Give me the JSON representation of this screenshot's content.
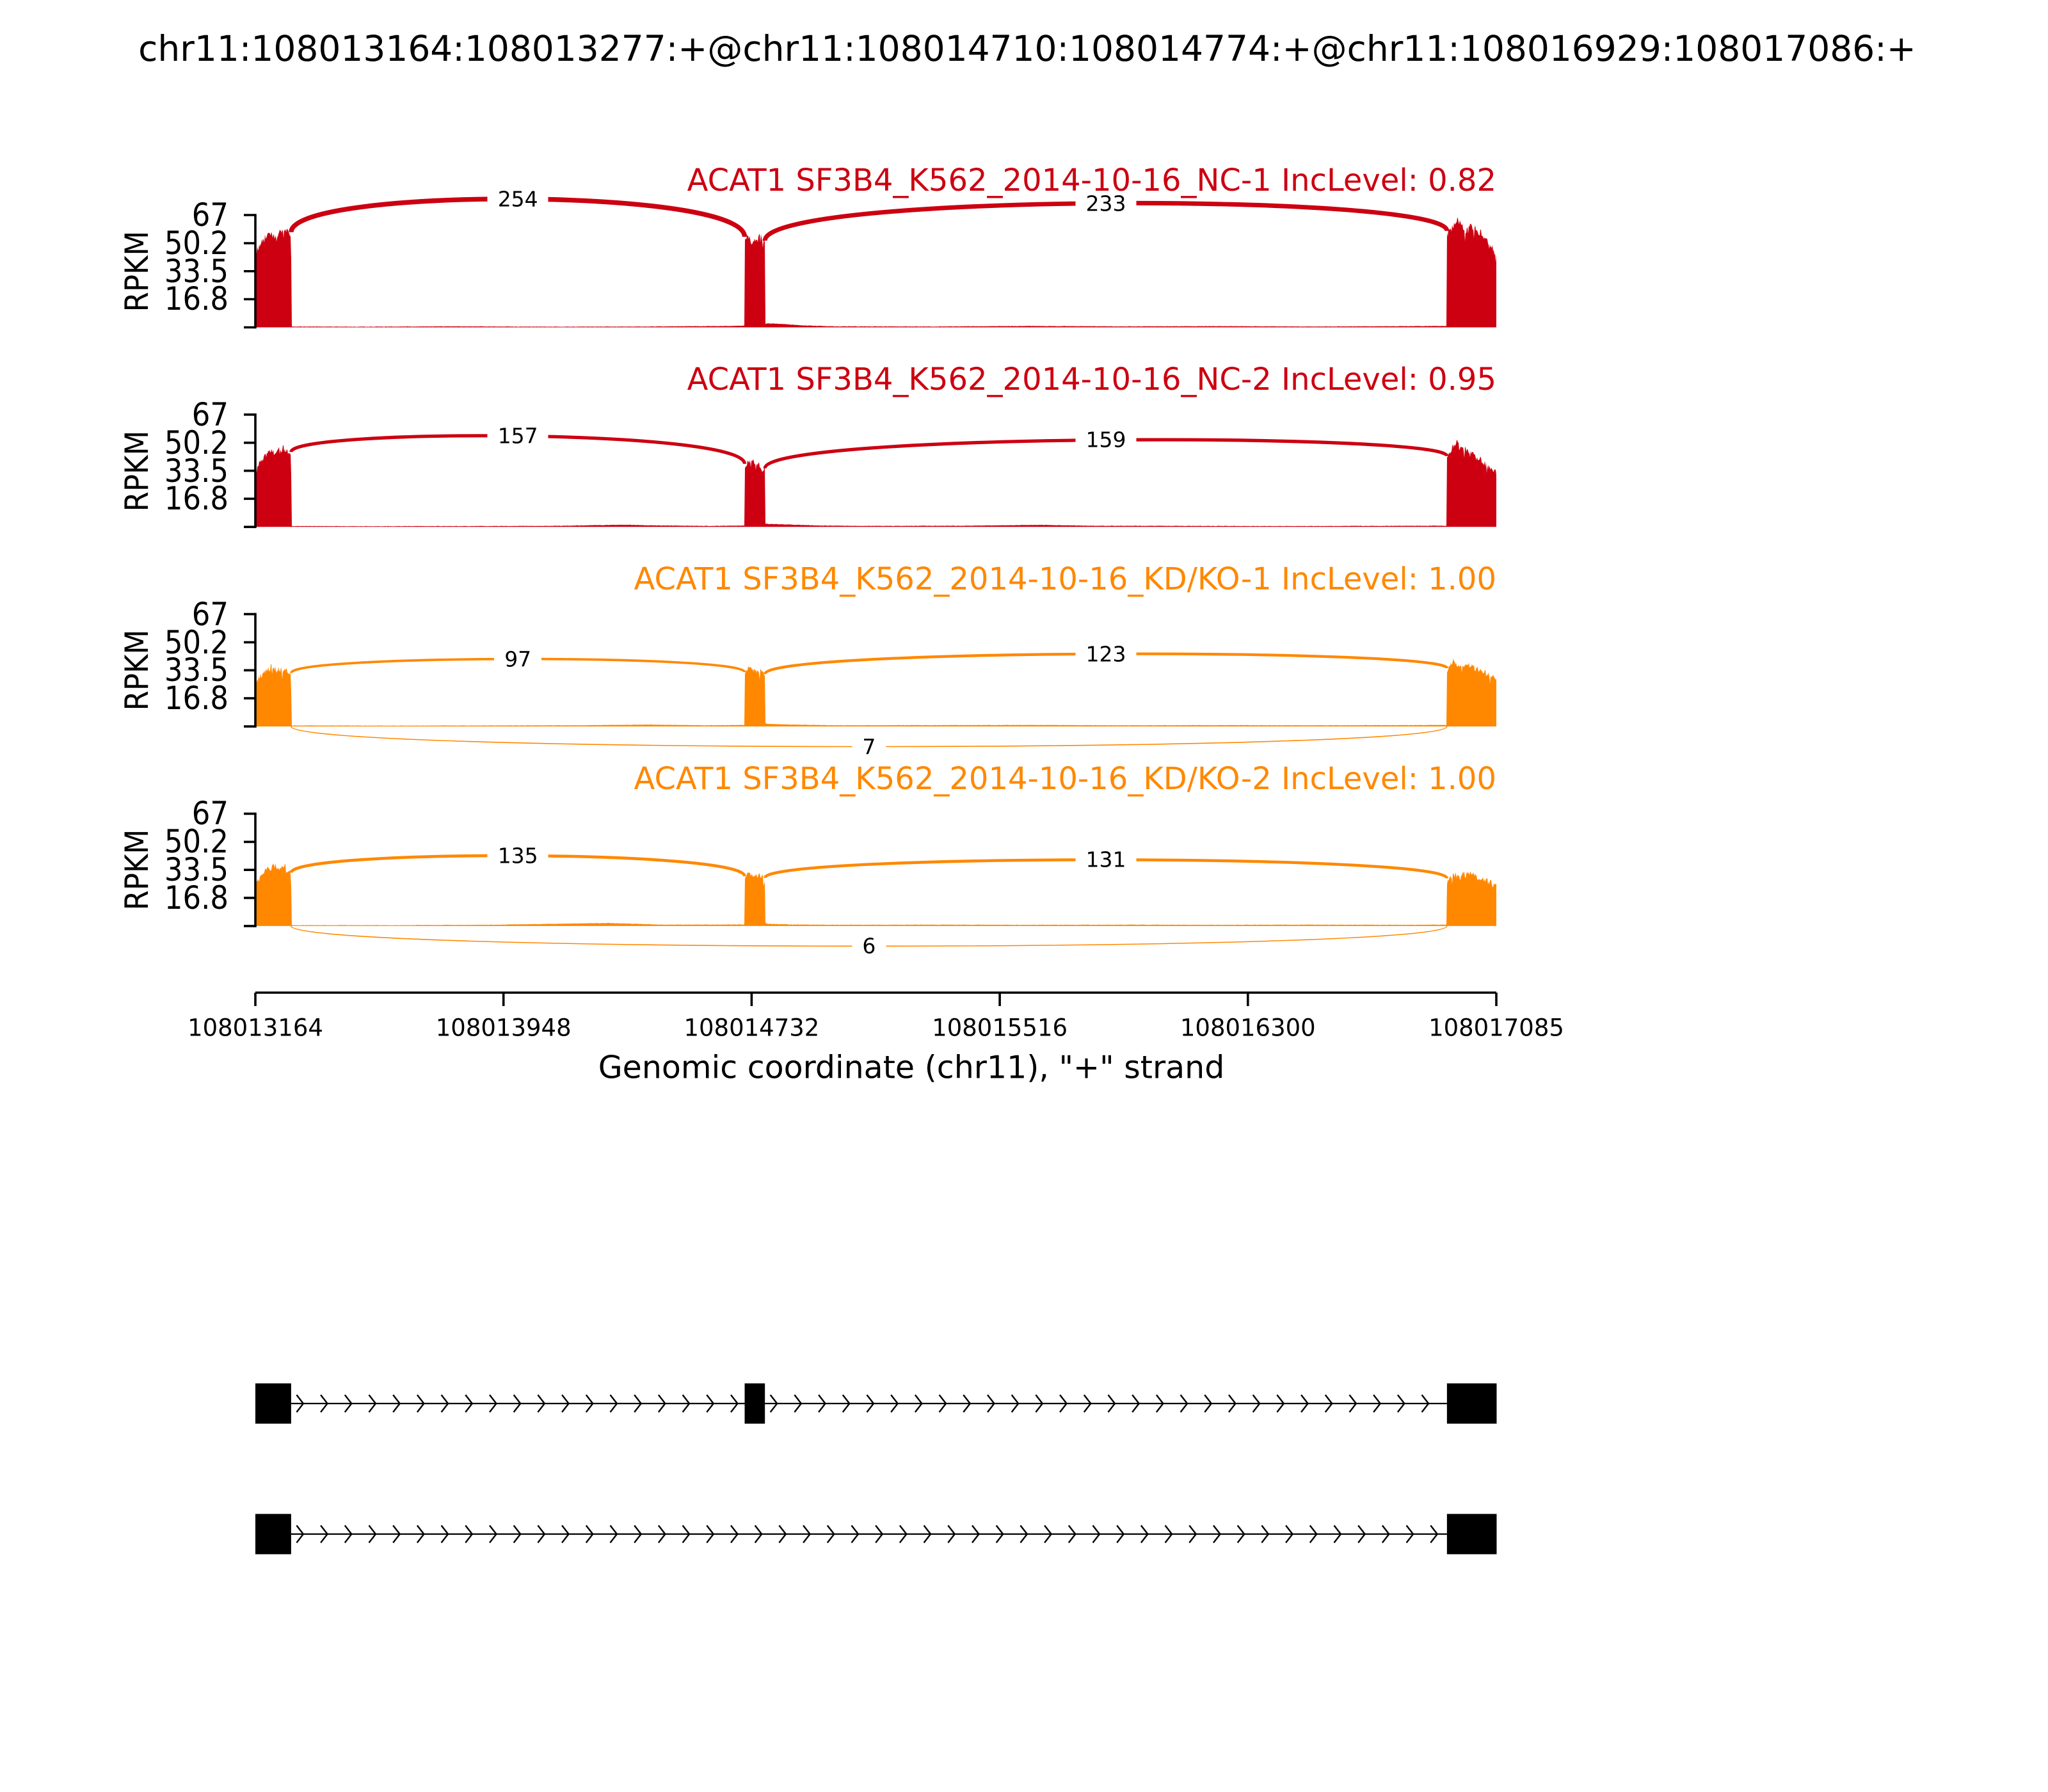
{
  "figure": {
    "background": "#ffffff"
  },
  "chart_data": {
    "type": "sashimi",
    "title": "chr11:108013164:108013277:+@chr11:108014710:108014774:+@chr11:108016929:108017086:+",
    "xlabel": "Genomic coordinate (chr11), \"+\" strand",
    "ylabel": "RPKM",
    "chrom": "chr11",
    "strand": "+",
    "xlim": [
      108013164,
      108017085
    ],
    "ylim": [
      0,
      67
    ],
    "yticks": [
      16.8,
      33.5,
      50.2,
      67
    ],
    "xticks": [
      108013164,
      108013948,
      108014732,
      108015516,
      108016300,
      108017085
    ],
    "event_exons": [
      [
        108013164,
        108013277
      ],
      [
        108014710,
        108014774
      ],
      [
        108016929,
        108017086
      ]
    ],
    "group_colors": [
      "#CC0011",
      "#FF8800"
    ],
    "tracks": [
      {
        "label": "ACAT1 SF3B4_K562_2014-10-16_NC-1 IncLevel: 0.82",
        "inc_level": "0.82",
        "color": "#CC0011",
        "jitter_rpkm": 3.2,
        "coverage": [
          [
            108013164,
            44
          ],
          [
            108013185,
            51
          ],
          [
            108013200,
            55
          ],
          [
            108013215,
            57
          ],
          [
            108013230,
            54
          ],
          [
            108013245,
            57
          ],
          [
            108013262,
            58
          ],
          [
            108013277,
            56
          ],
          [
            108013278,
            0.5
          ],
          [
            108013290,
            0.5
          ],
          [
            108013500,
            0.4
          ],
          [
            108013800,
            0.6
          ],
          [
            108014100,
            0.4
          ],
          [
            108014400,
            0.5
          ],
          [
            108014650,
            0.8
          ],
          [
            108014705,
            1.0
          ],
          [
            108014709,
            1.0
          ],
          [
            108014710,
            52
          ],
          [
            108014722,
            56
          ],
          [
            108014734,
            50
          ],
          [
            108014746,
            53
          ],
          [
            108014760,
            54
          ],
          [
            108014774,
            50
          ],
          [
            108014775,
            2.0
          ],
          [
            108014782,
            2.4
          ],
          [
            108014830,
            2.0
          ],
          [
            108014900,
            1.1
          ],
          [
            108015000,
            0.6
          ],
          [
            108015300,
            0.5
          ],
          [
            108015600,
            0.8
          ],
          [
            108015900,
            0.6
          ],
          [
            108016200,
            0.7
          ],
          [
            108016500,
            0.5
          ],
          [
            108016800,
            0.7
          ],
          [
            108016925,
            0.8
          ],
          [
            108016928,
            0.8
          ],
          [
            108016929,
            56
          ],
          [
            108016945,
            60
          ],
          [
            108016960,
            64
          ],
          [
            108016975,
            61
          ],
          [
            108016990,
            58
          ],
          [
            108017005,
            61
          ],
          [
            108017020,
            58
          ],
          [
            108017040,
            55
          ],
          [
            108017060,
            50
          ],
          [
            108017085,
            44
          ]
        ],
        "junctions": [
          {
            "start": 108013277,
            "end": 108014710,
            "reads": 254,
            "arc": "top"
          },
          {
            "start": 108014774,
            "end": 108016929,
            "reads": 233,
            "arc": "top"
          }
        ],
        "seed": 11
      },
      {
        "label": "ACAT1 SF3B4_K562_2014-10-16_NC-2 IncLevel: 0.95",
        "inc_level": "0.95",
        "color": "#CC0011",
        "jitter_rpkm": 2.8,
        "coverage": [
          [
            108013164,
            33
          ],
          [
            108013180,
            38
          ],
          [
            108013195,
            43
          ],
          [
            108013210,
            46
          ],
          [
            108013225,
            44
          ],
          [
            108013240,
            47
          ],
          [
            108013260,
            46
          ],
          [
            108013277,
            44
          ],
          [
            108013278,
            0.5
          ],
          [
            108013290,
            0.5
          ],
          [
            108013500,
            0.4
          ],
          [
            108013800,
            0.5
          ],
          [
            108014100,
            0.6
          ],
          [
            108014330,
            1.3
          ],
          [
            108014420,
            0.9
          ],
          [
            108014600,
            0.6
          ],
          [
            108014705,
            0.8
          ],
          [
            108014709,
            0.8
          ],
          [
            108014710,
            36
          ],
          [
            108014725,
            40
          ],
          [
            108014740,
            38
          ],
          [
            108014755,
            37
          ],
          [
            108014774,
            34
          ],
          [
            108014775,
            2.0
          ],
          [
            108014782,
            1.8
          ],
          [
            108014850,
            1.4
          ],
          [
            108014950,
            0.8
          ],
          [
            108015100,
            0.6
          ],
          [
            108015400,
            0.7
          ],
          [
            108015640,
            1.2
          ],
          [
            108015800,
            0.7
          ],
          [
            108016100,
            0.6
          ],
          [
            108016400,
            0.5
          ],
          [
            108016700,
            0.6
          ],
          [
            108016925,
            0.7
          ],
          [
            108016928,
            0.7
          ],
          [
            108016929,
            40
          ],
          [
            108016945,
            46
          ],
          [
            108016960,
            51
          ],
          [
            108016975,
            48
          ],
          [
            108016990,
            45
          ],
          [
            108017010,
            43
          ],
          [
            108017030,
            40
          ],
          [
            108017055,
            37
          ],
          [
            108017085,
            33
          ]
        ],
        "junctions": [
          {
            "start": 108013277,
            "end": 108014710,
            "reads": 157,
            "arc": "top"
          },
          {
            "start": 108014774,
            "end": 108016929,
            "reads": 159,
            "arc": "top"
          }
        ],
        "seed": 22
      },
      {
        "label": "ACAT1 SF3B4_K562_2014-10-16_KD/KO-1 IncLevel: 1.00",
        "inc_level": "1.00",
        "color": "#FF8800",
        "jitter_rpkm": 2.6,
        "coverage": [
          [
            108013164,
            26
          ],
          [
            108013180,
            30
          ],
          [
            108013200,
            33
          ],
          [
            108013220,
            36
          ],
          [
            108013240,
            33
          ],
          [
            108013258,
            36
          ],
          [
            108013277,
            30
          ],
          [
            108013278,
            0.5
          ],
          [
            108013290,
            0.6
          ],
          [
            108013600,
            0.5
          ],
          [
            108013900,
            0.6
          ],
          [
            108014200,
            0.7
          ],
          [
            108014400,
            1.1
          ],
          [
            108014600,
            0.7
          ],
          [
            108014705,
            0.9
          ],
          [
            108014709,
            0.9
          ],
          [
            108014710,
            30
          ],
          [
            108014725,
            36
          ],
          [
            108014740,
            33
          ],
          [
            108014755,
            34
          ],
          [
            108014774,
            30
          ],
          [
            108014775,
            2.0
          ],
          [
            108014782,
            1.5
          ],
          [
            108014860,
            1.1
          ],
          [
            108015000,
            0.7
          ],
          [
            108015300,
            0.8
          ],
          [
            108015600,
            0.9
          ],
          [
            108015900,
            0.7
          ],
          [
            108016200,
            0.8
          ],
          [
            108016500,
            0.7
          ],
          [
            108016800,
            0.8
          ],
          [
            108016925,
            0.9
          ],
          [
            108016928,
            0.9
          ],
          [
            108016929,
            33
          ],
          [
            108016950,
            39
          ],
          [
            108016970,
            36
          ],
          [
            108016990,
            38
          ],
          [
            108017010,
            36
          ],
          [
            108017030,
            34
          ],
          [
            108017060,
            31
          ],
          [
            108017085,
            29
          ]
        ],
        "junctions": [
          {
            "start": 108013277,
            "end": 108014710,
            "reads": 97,
            "arc": "top"
          },
          {
            "start": 108014774,
            "end": 108016929,
            "reads": 123,
            "arc": "top"
          },
          {
            "start": 108013277,
            "end": 108016929,
            "reads": 7,
            "arc": "bottom"
          }
        ],
        "seed": 33
      },
      {
        "label": "ACAT1 SF3B4_K562_2014-10-16_KD/KO-2 IncLevel: 1.00",
        "inc_level": "1.00",
        "color": "#FF8800",
        "jitter_rpkm": 2.6,
        "coverage": [
          [
            108013164,
            25
          ],
          [
            108013180,
            29
          ],
          [
            108013200,
            33
          ],
          [
            108013220,
            36
          ],
          [
            108013240,
            33
          ],
          [
            108013260,
            35
          ],
          [
            108013277,
            30
          ],
          [
            108013278,
            0.5
          ],
          [
            108013290,
            0.5
          ],
          [
            108013600,
            0.5
          ],
          [
            108013900,
            0.7
          ],
          [
            108014280,
            1.8
          ],
          [
            108014450,
            0.8
          ],
          [
            108014700,
            0.9
          ],
          [
            108014709,
            0.9
          ],
          [
            108014710,
            28
          ],
          [
            108014725,
            32
          ],
          [
            108014740,
            30
          ],
          [
            108014760,
            31
          ],
          [
            108014774,
            27
          ],
          [
            108014775,
            2.0
          ],
          [
            108014782,
            1.3
          ],
          [
            108014860,
            0.9
          ],
          [
            108015000,
            0.7
          ],
          [
            108015300,
            0.8
          ],
          [
            108015600,
            0.7
          ],
          [
            108015900,
            0.8
          ],
          [
            108016200,
            0.7
          ],
          [
            108016500,
            0.8
          ],
          [
            108016800,
            0.7
          ],
          [
            108016925,
            0.8
          ],
          [
            108016928,
            0.8
          ],
          [
            108016929,
            27
          ],
          [
            108016950,
            32
          ],
          [
            108016970,
            30
          ],
          [
            108016990,
            31
          ],
          [
            108017010,
            30
          ],
          [
            108017030,
            28
          ],
          [
            108017060,
            26
          ],
          [
            108017085,
            24
          ]
        ],
        "junctions": [
          {
            "start": 108013277,
            "end": 108014710,
            "reads": 135,
            "arc": "top"
          },
          {
            "start": 108014774,
            "end": 108016929,
            "reads": 131,
            "arc": "top"
          },
          {
            "start": 108013277,
            "end": 108016929,
            "reads": 6,
            "arc": "bottom"
          }
        ],
        "seed": 44
      }
    ],
    "isoforms": [
      {
        "exons": [
          [
            108013164,
            108013277
          ],
          [
            108014710,
            108014774
          ],
          [
            108016929,
            108017086
          ]
        ]
      },
      {
        "exons": [
          [
            108013164,
            108013277
          ],
          [
            108016929,
            108017086
          ]
        ]
      }
    ]
  }
}
